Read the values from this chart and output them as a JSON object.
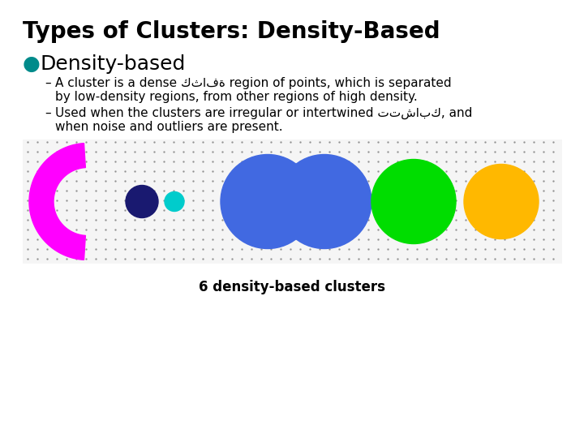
{
  "title": "Types of Clusters: Density-Based",
  "title_fontsize": 20,
  "title_fontweight": "bold",
  "bullet_label": "Density-based",
  "bullet_color": "#008B8B",
  "bullet_fontsize": 18,
  "text_fontsize": 11,
  "line1a": "A cluster is a dense كثافة region of points, which is separated",
  "line1b": "by low-density regions, from other regions of high density.",
  "line2a": "Used when the clusters are irregular or intertwined تتشابك, and",
  "line2b": "when noise and outliers are present.",
  "caption": "6 density-based clusters",
  "caption_fontsize": 12,
  "background_color": "#ffffff"
}
